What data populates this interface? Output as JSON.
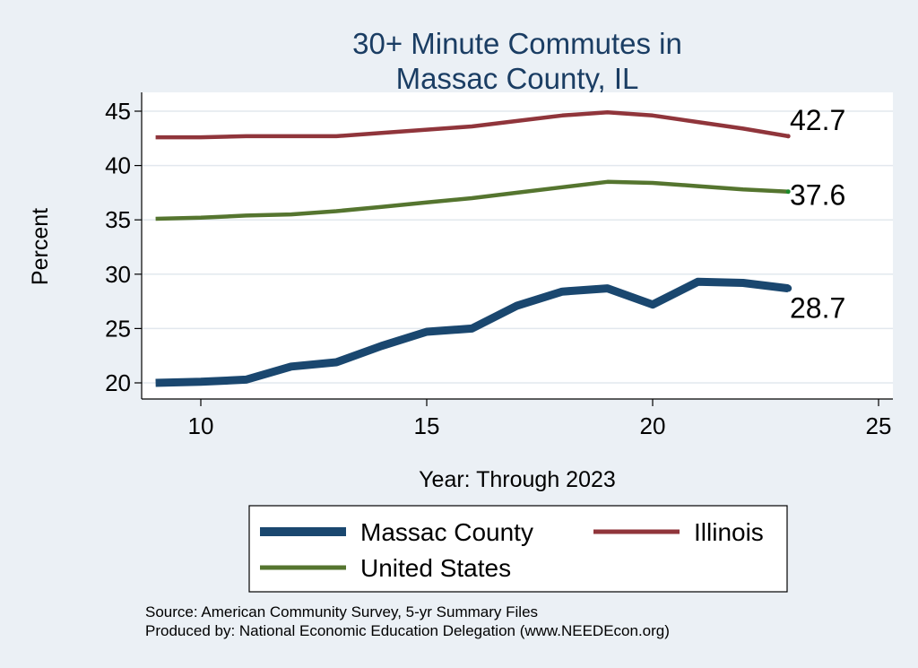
{
  "chart_data": {
    "type": "line",
    "title": [
      "30+ Minute Commutes in",
      "Massac County, IL"
    ],
    "xlabel": "Year: Through 2023",
    "ylabel": "Percent",
    "xlim": [
      9,
      25
    ],
    "ylim": [
      19,
      46
    ],
    "xticks": [
      10,
      15,
      20,
      25
    ],
    "yticks": [
      20,
      25,
      30,
      35,
      40,
      45
    ],
    "grid": true,
    "x": [
      9,
      10,
      11,
      12,
      13,
      14,
      15,
      16,
      17,
      18,
      19,
      20,
      21,
      22,
      23
    ],
    "series": [
      {
        "name": "Massac County",
        "color": "#1a476f",
        "values": [
          20.0,
          20.1,
          20.3,
          21.5,
          21.9,
          23.4,
          24.7,
          25.0,
          27.1,
          28.4,
          28.7,
          27.2,
          29.3,
          29.2,
          28.7
        ],
        "end_label": "28.7"
      },
      {
        "name": "Illinois",
        "color": "#90353b",
        "values": [
          42.6,
          42.6,
          42.7,
          42.7,
          42.7,
          43.0,
          43.3,
          43.6,
          44.1,
          44.6,
          44.9,
          44.6,
          44.0,
          43.4,
          42.7
        ],
        "end_label": "42.7"
      },
      {
        "name": "United States",
        "color": "#55752f",
        "values": [
          35.1,
          35.2,
          35.4,
          35.5,
          35.8,
          36.2,
          36.6,
          37.0,
          37.5,
          38.0,
          38.5,
          38.4,
          38.1,
          37.8,
          37.6
        ],
        "end_label": "37.6"
      }
    ],
    "legend_position": "bottom",
    "source_lines": [
      "Source: American Community Survey, 5-yr Summary Files",
      "Produced by: National Economic Education Delegation (www.NEEDEcon.org)"
    ]
  }
}
